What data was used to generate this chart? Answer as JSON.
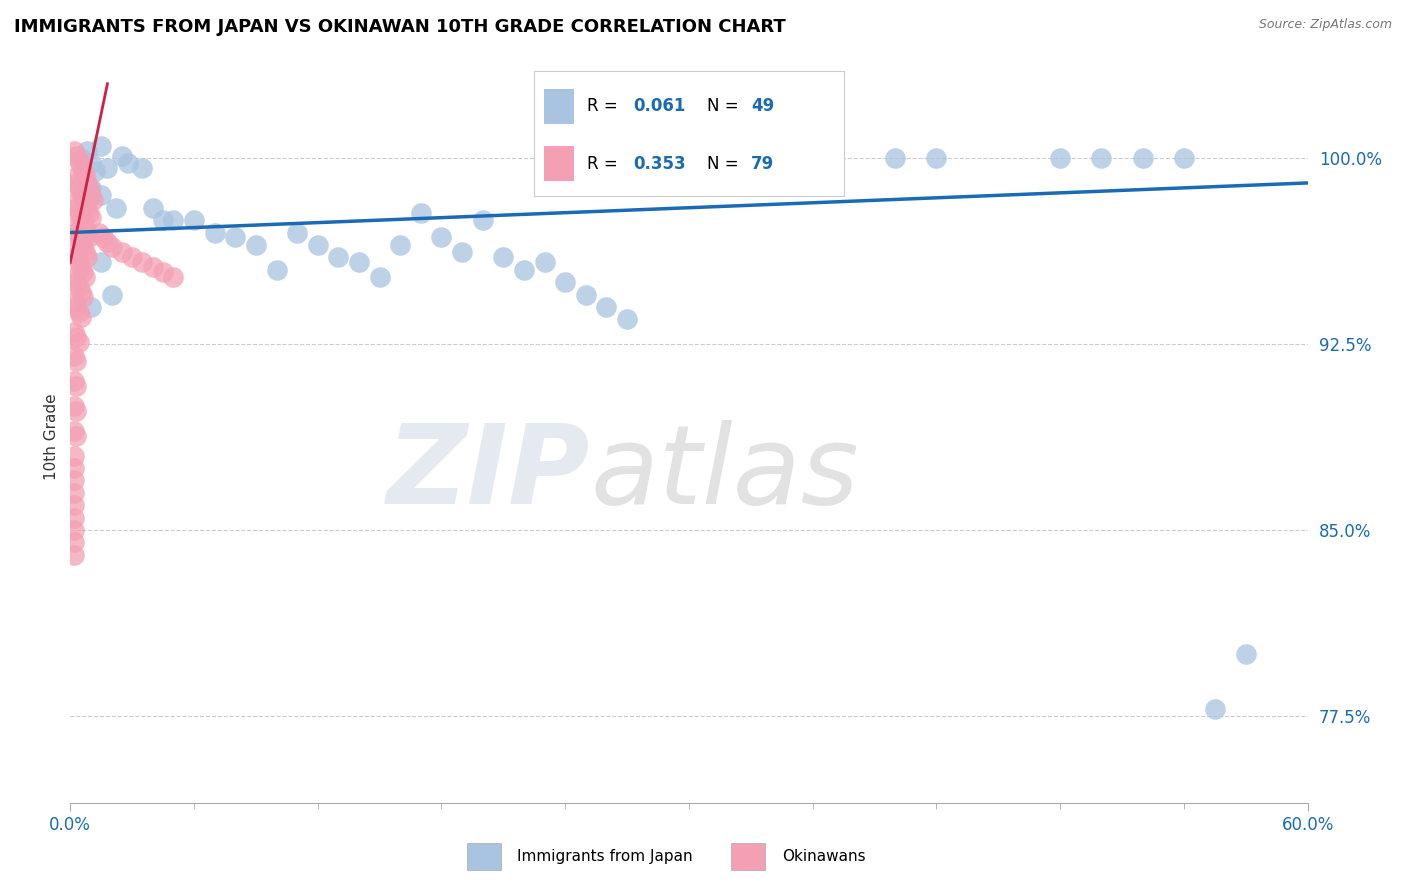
{
  "title": "IMMIGRANTS FROM JAPAN VS OKINAWAN 10TH GRADE CORRELATION CHART",
  "source": "Source: ZipAtlas.com",
  "ylabel": "10th Grade",
  "xlim": [
    0.0,
    0.6
  ],
  "ylim": [
    0.74,
    1.035
  ],
  "yticks": [
    0.775,
    0.85,
    0.925,
    1.0
  ],
  "ytick_labels": [
    "77.5%",
    "85.0%",
    "92.5%",
    "100.0%"
  ],
  "R_blue": 0.061,
  "N_blue": 49,
  "R_pink": 0.353,
  "N_pink": 79,
  "blue_color": "#a8c4e0",
  "pink_color": "#f4a0b4",
  "trend_blue_color": "#1a6bb5",
  "trend_pink_color": "#cc2244",
  "legend_label_blue": "Immigrants from Japan",
  "legend_label_pink": "Okinawans",
  "blue_trend_x": [
    0.0,
    0.6
  ],
  "blue_trend_y": [
    0.97,
    0.99
  ],
  "pink_trend_x": [
    0.0,
    0.018
  ],
  "pink_trend_y": [
    0.958,
    1.03
  ],
  "blue_scatter_x": [
    0.005,
    0.008,
    0.01,
    0.012,
    0.015,
    0.018,
    0.01,
    0.015,
    0.022,
    0.025,
    0.028,
    0.035,
    0.04,
    0.045,
    0.05,
    0.06,
    0.07,
    0.08,
    0.09,
    0.1,
    0.11,
    0.12,
    0.13,
    0.14,
    0.15,
    0.16,
    0.17,
    0.18,
    0.19,
    0.2,
    0.21,
    0.22,
    0.23,
    0.24,
    0.25,
    0.26,
    0.27,
    0.01,
    0.015,
    0.02,
    0.37,
    0.4,
    0.42,
    0.48,
    0.5,
    0.52,
    0.54,
    0.555,
    0.57
  ],
  "blue_scatter_y": [
    1.0,
    1.003,
    0.998,
    0.995,
    1.005,
    0.996,
    0.988,
    0.985,
    0.98,
    1.001,
    0.998,
    0.996,
    0.98,
    0.975,
    0.975,
    0.975,
    0.97,
    0.968,
    0.965,
    0.955,
    0.97,
    0.965,
    0.96,
    0.958,
    0.952,
    0.965,
    0.978,
    0.968,
    0.962,
    0.975,
    0.96,
    0.955,
    0.958,
    0.95,
    0.945,
    0.94,
    0.935,
    0.94,
    0.958,
    0.945,
    1.0,
    1.0,
    1.0,
    1.0,
    1.0,
    1.0,
    1.0,
    0.778,
    0.8
  ],
  "pink_scatter_x": [
    0.002,
    0.003,
    0.004,
    0.005,
    0.006,
    0.007,
    0.008,
    0.009,
    0.01,
    0.011,
    0.002,
    0.003,
    0.004,
    0.005,
    0.006,
    0.007,
    0.008,
    0.009,
    0.01,
    0.002,
    0.003,
    0.004,
    0.005,
    0.006,
    0.007,
    0.008,
    0.009,
    0.002,
    0.003,
    0.004,
    0.005,
    0.006,
    0.007,
    0.008,
    0.002,
    0.003,
    0.004,
    0.005,
    0.006,
    0.007,
    0.002,
    0.003,
    0.004,
    0.005,
    0.006,
    0.002,
    0.003,
    0.004,
    0.005,
    0.002,
    0.003,
    0.004,
    0.002,
    0.003,
    0.002,
    0.003,
    0.002,
    0.003,
    0.002,
    0.003,
    0.002,
    0.002,
    0.002,
    0.002,
    0.002,
    0.002,
    0.002,
    0.002,
    0.002,
    0.014,
    0.016,
    0.018,
    0.02,
    0.025,
    0.03,
    0.035,
    0.04,
    0.045,
    0.05
  ],
  "pink_scatter_y": [
    1.003,
    1.001,
    0.999,
    0.997,
    0.995,
    0.993,
    0.99,
    0.988,
    0.985,
    0.983,
    0.992,
    0.99,
    0.988,
    0.986,
    0.984,
    0.982,
    0.98,
    0.978,
    0.976,
    0.982,
    0.98,
    0.978,
    0.976,
    0.974,
    0.972,
    0.97,
    0.968,
    0.972,
    0.97,
    0.968,
    0.966,
    0.964,
    0.962,
    0.96,
    0.962,
    0.96,
    0.958,
    0.956,
    0.954,
    0.952,
    0.952,
    0.95,
    0.948,
    0.946,
    0.944,
    0.942,
    0.94,
    0.938,
    0.936,
    0.93,
    0.928,
    0.926,
    0.92,
    0.918,
    0.91,
    0.908,
    0.9,
    0.898,
    0.89,
    0.888,
    0.88,
    0.875,
    0.87,
    0.865,
    0.86,
    0.855,
    0.85,
    0.845,
    0.84,
    0.97,
    0.968,
    0.966,
    0.964,
    0.962,
    0.96,
    0.958,
    0.956,
    0.954,
    0.952
  ]
}
